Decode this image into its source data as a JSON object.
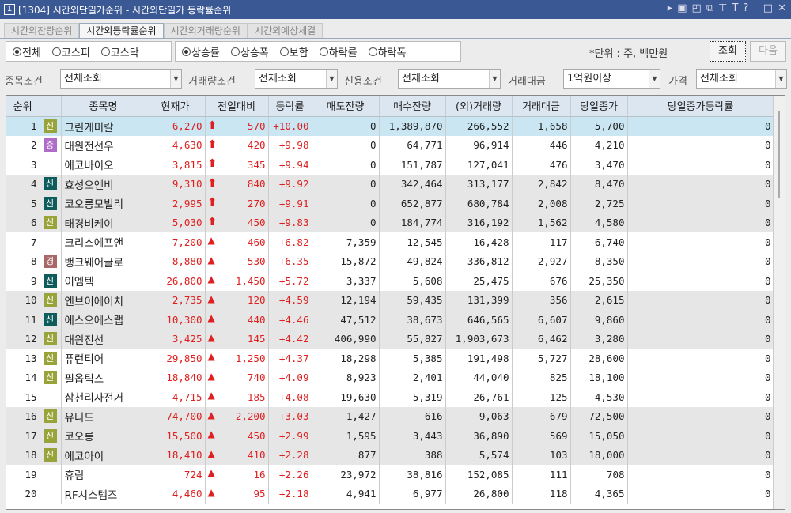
{
  "window": {
    "number": "1",
    "title": "[1304] 시간외단일가순위 - 시간외단일가 등락률순위",
    "icons": [
      "play-icon",
      "memo-icon",
      "layout-icon",
      "window-copy-icon",
      "pin-icon",
      "text-icon",
      "help-icon",
      "minimize-icon",
      "maximize-icon",
      "close-icon"
    ]
  },
  "tabs": [
    {
      "label": "시간외잔량순위"
    },
    {
      "label": "시간외등락률순위",
      "active": true
    },
    {
      "label": "시간외거래량순위"
    },
    {
      "label": "시간외예상체결"
    }
  ],
  "market": [
    {
      "label": "전체",
      "checked": true
    },
    {
      "label": "코스피"
    },
    {
      "label": "코스닥"
    }
  ],
  "sort": [
    {
      "label": "상승률",
      "checked": true
    },
    {
      "label": "상승폭"
    },
    {
      "label": "보합"
    },
    {
      "label": "하락률"
    },
    {
      "label": "하락폭"
    }
  ],
  "unit": "*단위 : 주, 백만원",
  "buttons": {
    "query": "조회",
    "next": "다음"
  },
  "filters": [
    {
      "label": "종목조건",
      "value": "전체조회"
    },
    {
      "label": "거래량조건",
      "value": "전체조회"
    },
    {
      "label": "신용조건",
      "value": "전체조회"
    },
    {
      "label": "거래대금",
      "value": "1억원이상"
    },
    {
      "label": "가격",
      "value": "전체조회"
    }
  ],
  "colors": {
    "titlebar": "#3a5894",
    "up": "#e02020",
    "badge_olive": "#98a33a",
    "badge_teal": "#0f5c5c",
    "badge_purple": "#b06cc8",
    "badge_rose": "#a86868",
    "selected_row": "#c9e6f2"
  },
  "columns": [
    "순위",
    "",
    "종목명",
    "현재가",
    "전일대비",
    "등락률",
    "매도잔량",
    "매수잔량",
    "(외)거래량",
    "거래대금",
    "당일종가",
    "당일종가등락률"
  ],
  "rows": [
    {
      "rank": "1",
      "badge": "신",
      "badge_color": "olive",
      "name": "그린케미칼",
      "price": "6,270",
      "arrow": "upper-limit",
      "change": "570",
      "rate": "+10.00",
      "ask": "0",
      "bid": "1,389,870",
      "volume": "266,552",
      "amount": "1,658",
      "close": "5,700",
      "close_rate": "0"
    },
    {
      "rank": "2",
      "badge": "증",
      "badge_color": "purple",
      "name": "대원전선우",
      "price": "4,630",
      "arrow": "upper-limit",
      "change": "420",
      "rate": "+9.98",
      "ask": "0",
      "bid": "64,771",
      "volume": "96,914",
      "amount": "446",
      "close": "4,210",
      "close_rate": "0"
    },
    {
      "rank": "3",
      "badge": "",
      "name": "에코바이오",
      "price": "3,815",
      "arrow": "upper-limit",
      "change": "345",
      "rate": "+9.94",
      "ask": "0",
      "bid": "151,787",
      "volume": "127,041",
      "amount": "476",
      "close": "3,470",
      "close_rate": "0"
    },
    {
      "rank": "4",
      "badge": "신",
      "badge_color": "teal",
      "name": "효성오앤비",
      "price": "9,310",
      "arrow": "upper-limit",
      "change": "840",
      "rate": "+9.92",
      "ask": "0",
      "bid": "342,464",
      "volume": "313,177",
      "amount": "2,842",
      "close": "8,470",
      "close_rate": "0"
    },
    {
      "rank": "5",
      "badge": "신",
      "badge_color": "teal",
      "name": "코오롱모빌리",
      "price": "2,995",
      "arrow": "upper-limit",
      "change": "270",
      "rate": "+9.91",
      "ask": "0",
      "bid": "652,877",
      "volume": "680,784",
      "amount": "2,008",
      "close": "2,725",
      "close_rate": "0"
    },
    {
      "rank": "6",
      "badge": "신",
      "badge_color": "olive",
      "name": "태경비케이",
      "price": "5,030",
      "arrow": "upper-limit",
      "change": "450",
      "rate": "+9.83",
      "ask": "0",
      "bid": "184,774",
      "volume": "316,192",
      "amount": "1,562",
      "close": "4,580",
      "close_rate": "0"
    },
    {
      "rank": "7",
      "badge": "",
      "name": "크리스에프앤",
      "price": "7,200",
      "arrow": "up",
      "change": "460",
      "rate": "+6.82",
      "ask": "7,359",
      "bid": "12,545",
      "volume": "16,428",
      "amount": "117",
      "close": "6,740",
      "close_rate": "0"
    },
    {
      "rank": "8",
      "badge": "경",
      "badge_color": "rose",
      "name": "뱅크웨어글로",
      "price": "8,880",
      "arrow": "up",
      "change": "530",
      "rate": "+6.35",
      "ask": "15,872",
      "bid": "49,824",
      "volume": "336,812",
      "amount": "2,927",
      "close": "8,350",
      "close_rate": "0"
    },
    {
      "rank": "9",
      "badge": "신",
      "badge_color": "teal",
      "name": "이엠텍",
      "price": "26,800",
      "arrow": "up",
      "change": "1,450",
      "rate": "+5.72",
      "ask": "3,337",
      "bid": "5,608",
      "volume": "25,475",
      "amount": "676",
      "close": "25,350",
      "close_rate": "0"
    },
    {
      "rank": "10",
      "badge": "신",
      "badge_color": "olive",
      "name": "엔브이에이치",
      "price": "2,735",
      "arrow": "up",
      "change": "120",
      "rate": "+4.59",
      "ask": "12,194",
      "bid": "59,435",
      "volume": "131,399",
      "amount": "356",
      "close": "2,615",
      "close_rate": "0"
    },
    {
      "rank": "11",
      "badge": "신",
      "badge_color": "teal",
      "name": "에스오에스랩",
      "price": "10,300",
      "arrow": "up",
      "change": "440",
      "rate": "+4.46",
      "ask": "47,512",
      "bid": "38,673",
      "volume": "646,565",
      "amount": "6,607",
      "close": "9,860",
      "close_rate": "0"
    },
    {
      "rank": "12",
      "badge": "신",
      "badge_color": "olive",
      "name": "대원전선",
      "price": "3,425",
      "arrow": "up",
      "change": "145",
      "rate": "+4.42",
      "ask": "406,990",
      "bid": "55,827",
      "volume": "1,903,673",
      "amount": "6,462",
      "close": "3,280",
      "close_rate": "0"
    },
    {
      "rank": "13",
      "badge": "신",
      "badge_color": "olive",
      "name": "퓨런티어",
      "price": "29,850",
      "arrow": "up",
      "change": "1,250",
      "rate": "+4.37",
      "ask": "18,298",
      "bid": "5,385",
      "volume": "191,498",
      "amount": "5,727",
      "close": "28,600",
      "close_rate": "0"
    },
    {
      "rank": "14",
      "badge": "신",
      "badge_color": "olive",
      "name": "필옵틱스",
      "price": "18,840",
      "arrow": "up",
      "change": "740",
      "rate": "+4.09",
      "ask": "8,923",
      "bid": "2,401",
      "volume": "44,040",
      "amount": "825",
      "close": "18,100",
      "close_rate": "0"
    },
    {
      "rank": "15",
      "badge": "",
      "name": "삼천리자전거",
      "price": "4,715",
      "arrow": "up",
      "change": "185",
      "rate": "+4.08",
      "ask": "19,630",
      "bid": "5,319",
      "volume": "26,761",
      "amount": "125",
      "close": "4,530",
      "close_rate": "0"
    },
    {
      "rank": "16",
      "badge": "신",
      "badge_color": "olive",
      "name": "유니드",
      "price": "74,700",
      "arrow": "up",
      "change": "2,200",
      "rate": "+3.03",
      "ask": "1,427",
      "bid": "616",
      "volume": "9,063",
      "amount": "679",
      "close": "72,500",
      "close_rate": "0"
    },
    {
      "rank": "17",
      "badge": "신",
      "badge_color": "olive",
      "name": "코오롱",
      "price": "15,500",
      "arrow": "up",
      "change": "450",
      "rate": "+2.99",
      "ask": "1,595",
      "bid": "3,443",
      "volume": "36,890",
      "amount": "569",
      "close": "15,050",
      "close_rate": "0"
    },
    {
      "rank": "18",
      "badge": "신",
      "badge_color": "olive",
      "name": "에코아이",
      "price": "18,410",
      "arrow": "up",
      "change": "410",
      "rate": "+2.28",
      "ask": "877",
      "bid": "388",
      "volume": "5,574",
      "amount": "103",
      "close": "18,000",
      "close_rate": "0"
    },
    {
      "rank": "19",
      "badge": "",
      "name": "휴림",
      "price": "724",
      "arrow": "up",
      "change": "16",
      "rate": "+2.26",
      "ask": "23,972",
      "bid": "38,816",
      "volume": "152,085",
      "amount": "111",
      "close": "708",
      "close_rate": "0"
    },
    {
      "rank": "20",
      "badge": "",
      "name": "RF시스템즈",
      "price": "4,460",
      "arrow": "up",
      "change": "95",
      "rate": "+2.18",
      "ask": "4,941",
      "bid": "6,977",
      "volume": "26,800",
      "amount": "118",
      "close": "4,365",
      "close_rate": "0"
    }
  ]
}
